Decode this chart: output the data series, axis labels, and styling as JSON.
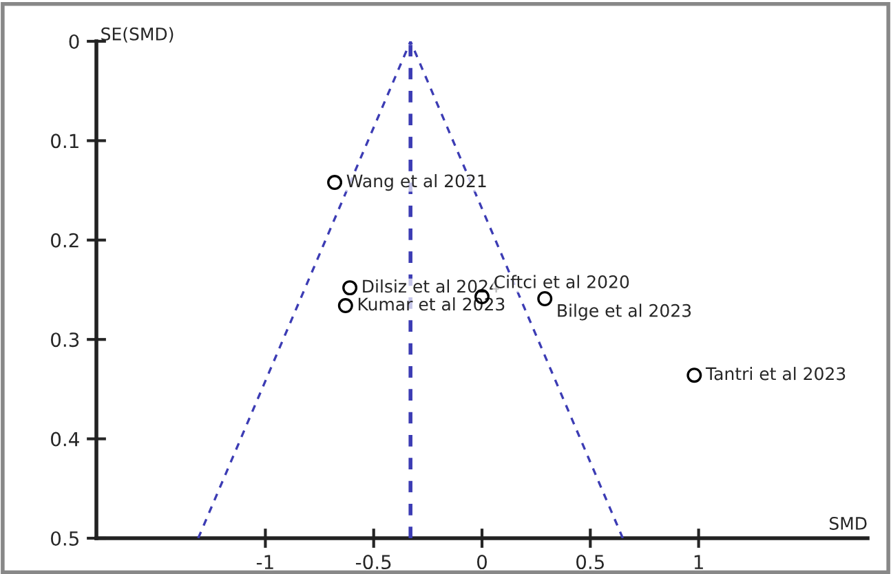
{
  "chart_data": {
    "type": "scatter",
    "xlabel": "SMD",
    "ylabel": "SE(SMD)",
    "xlim": [
      -1.78,
      1.78
    ],
    "ylim": [
      0.5,
      0
    ],
    "xticks": [
      -1,
      -0.5,
      0,
      0.5,
      1
    ],
    "yticks": [
      0,
      0.1,
      0.2,
      0.3,
      0.4,
      0.5
    ],
    "grid": false,
    "legend": false,
    "marker": "circle",
    "series": [
      {
        "color": "#000000",
        "x": [
          -0.68,
          -0.61,
          -0.63,
          0.0,
          0.29,
          0.98
        ],
        "values": [
          0.142,
          0.248,
          0.266,
          0.257,
          0.259,
          0.336
        ]
      },
      {
        "type": "line",
        "color": "#3c3cb4",
        "line_style": "dashed",
        "marker": "none",
        "x": [
          -1.31,
          -0.33,
          0.65
        ],
        "values": [
          0.5,
          0,
          0.5
        ]
      }
    ],
    "ref_lines": [
      {
        "axis": "x",
        "value": -0.33,
        "color": "#3c3cb4",
        "line_style": "dashed"
      }
    ],
    "annotations": [
      {
        "text": "Wang et al 2021",
        "x": -0.68,
        "y": 0.142
      },
      {
        "text": "Dilsiz et al 2024",
        "x": -0.61,
        "y": 0.248
      },
      {
        "text": "Kumar et al 2023",
        "x": -0.63,
        "y": 0.266
      },
      {
        "text": "Ciftci et al 2020",
        "x": 0.0,
        "y": 0.257
      },
      {
        "text": "Bilge et al 2023",
        "x": 0.29,
        "y": 0.259
      },
      {
        "text": "Tantri et al 2023",
        "x": 0.98,
        "y": 0.336
      }
    ]
  }
}
